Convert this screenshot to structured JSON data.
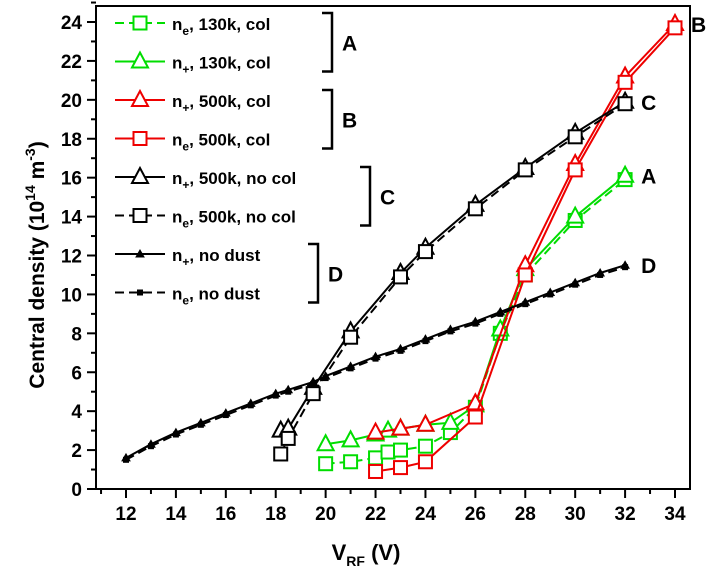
{
  "chart_data": {
    "type": "line",
    "xlabel": "V",
    "xlabel_sub": "RF",
    "xlabel_unit": "(V)",
    "ylabel_main": "Central density (10",
    "ylabel_exp1": "14",
    "ylabel_mid": " m",
    "ylabel_exp2": "-3",
    "ylabel_end": ")",
    "xlim": [
      11,
      35
    ],
    "ylim": [
      0,
      25
    ],
    "xticks": [
      12,
      14,
      16,
      18,
      20,
      22,
      24,
      26,
      28,
      30,
      32,
      34
    ],
    "yticks": [
      0,
      2,
      4,
      6,
      8,
      10,
      12,
      14,
      16,
      18,
      20,
      22,
      24
    ],
    "grid": false,
    "legend_position": "top-left",
    "series": [
      {
        "name": "n_e, 130k, col",
        "color": "#00dd00",
        "marker": "square",
        "dash": true,
        "x": [
          20,
          21,
          22,
          22.5,
          23,
          24,
          25,
          26,
          27,
          28,
          30,
          32
        ],
        "y": [
          1.3,
          1.4,
          1.6,
          1.9,
          2.0,
          2.2,
          2.9,
          4.2,
          8.0,
          11.0,
          13.8,
          15.9
        ]
      },
      {
        "name": "n_+, 130k, col",
        "color": "#00dd00",
        "marker": "triangle",
        "dash": false,
        "x": [
          20,
          21,
          22,
          22.5,
          23,
          24,
          25,
          26,
          27,
          28,
          30,
          32
        ],
        "y": [
          2.3,
          2.5,
          2.8,
          3.0,
          3.1,
          3.3,
          3.4,
          4.3,
          8.2,
          11.3,
          14.0,
          16.1
        ]
      },
      {
        "name": "n_+, 500k, col",
        "color": "#ee0000",
        "marker": "triangle",
        "dash": false,
        "x": [
          22,
          23,
          24,
          26,
          28,
          30,
          32,
          34
        ],
        "y": [
          2.9,
          3.1,
          3.3,
          4.4,
          11.5,
          16.7,
          21.2,
          23.9
        ]
      },
      {
        "name": "n_e, 500k, col",
        "color": "#ee0000",
        "marker": "square",
        "dash": false,
        "x": [
          22,
          23,
          24,
          26,
          28,
          30,
          32,
          34
        ],
        "y": [
          0.9,
          1.1,
          1.4,
          3.7,
          11.0,
          16.4,
          20.9,
          23.7
        ]
      },
      {
        "name": "n_+, 500k, no col",
        "color": "#000000",
        "marker": "triangle",
        "dash": false,
        "x": [
          18.2,
          18.5,
          19.5,
          21,
          23,
          24,
          26,
          28,
          30,
          32
        ],
        "y": [
          3.0,
          3.1,
          5.2,
          8.1,
          11.1,
          12.4,
          14.6,
          16.5,
          18.3,
          19.9
        ]
      },
      {
        "name": "n_e, 500k, no col",
        "color": "#000000",
        "marker": "square",
        "dash": true,
        "x": [
          18.2,
          18.5,
          19.5,
          21,
          23,
          24,
          26,
          28,
          30,
          32
        ],
        "y": [
          1.8,
          2.6,
          4.9,
          7.8,
          10.9,
          12.2,
          14.4,
          16.4,
          18.1,
          19.8
        ]
      },
      {
        "name": "n_+, no dust",
        "color": "#000000",
        "marker": "smalltri",
        "dash": false,
        "x": [
          12,
          13,
          14,
          15,
          16,
          17,
          18,
          18.5,
          19.5,
          20,
          21,
          22,
          23,
          24,
          25,
          26,
          27,
          28,
          29,
          30,
          31,
          32
        ],
        "y": [
          1.6,
          2.3,
          2.9,
          3.4,
          3.9,
          4.4,
          4.9,
          5.1,
          5.5,
          5.8,
          6.3,
          6.8,
          7.2,
          7.7,
          8.2,
          8.6,
          9.1,
          9.6,
          10.1,
          10.6,
          11.1,
          11.5
        ]
      },
      {
        "name": "n_e, no dust",
        "color": "#000000",
        "marker": "smallsq",
        "dash": true,
        "x": [
          12,
          13,
          14,
          15,
          16,
          17,
          18,
          18.5,
          19.5,
          20,
          21,
          22,
          23,
          24,
          25,
          26,
          27,
          28,
          29,
          30,
          31,
          32
        ],
        "y": [
          1.5,
          2.2,
          2.8,
          3.3,
          3.8,
          4.3,
          4.8,
          5.0,
          5.4,
          5.7,
          6.2,
          6.7,
          7.1,
          7.6,
          8.1,
          8.5,
          9.0,
          9.5,
          10.0,
          10.5,
          11.0,
          11.4
        ]
      }
    ],
    "legend": [
      {
        "sym": "n",
        "sub": "e",
        "text": ", 130k, col"
      },
      {
        "sym": "n",
        "sub": "+",
        "text": ", 130k, col"
      },
      {
        "sym": "n",
        "sub": "+",
        "text": ", 500k, col"
      },
      {
        "sym": "n",
        "sub": "e",
        "text": ", 500k, col"
      },
      {
        "sym": "n",
        "sub": "+",
        "text": ", 500k, no col"
      },
      {
        "sym": "n",
        "sub": "e",
        "text": ", 500k, no col"
      },
      {
        "sym": "n",
        "sub": "+",
        "text": ", no dust"
      },
      {
        "sym": "n",
        "sub": "e",
        "text": ", no dust"
      }
    ],
    "group_labels": [
      "A",
      "B",
      "C",
      "D"
    ],
    "end_labels": [
      {
        "text": "A",
        "x": 32,
        "y": 16.1
      },
      {
        "text": "B",
        "x": 34,
        "y": 23.9
      },
      {
        "text": "C",
        "x": 32,
        "y": 19.9
      },
      {
        "text": "D",
        "x": 32,
        "y": 11.5
      }
    ]
  }
}
